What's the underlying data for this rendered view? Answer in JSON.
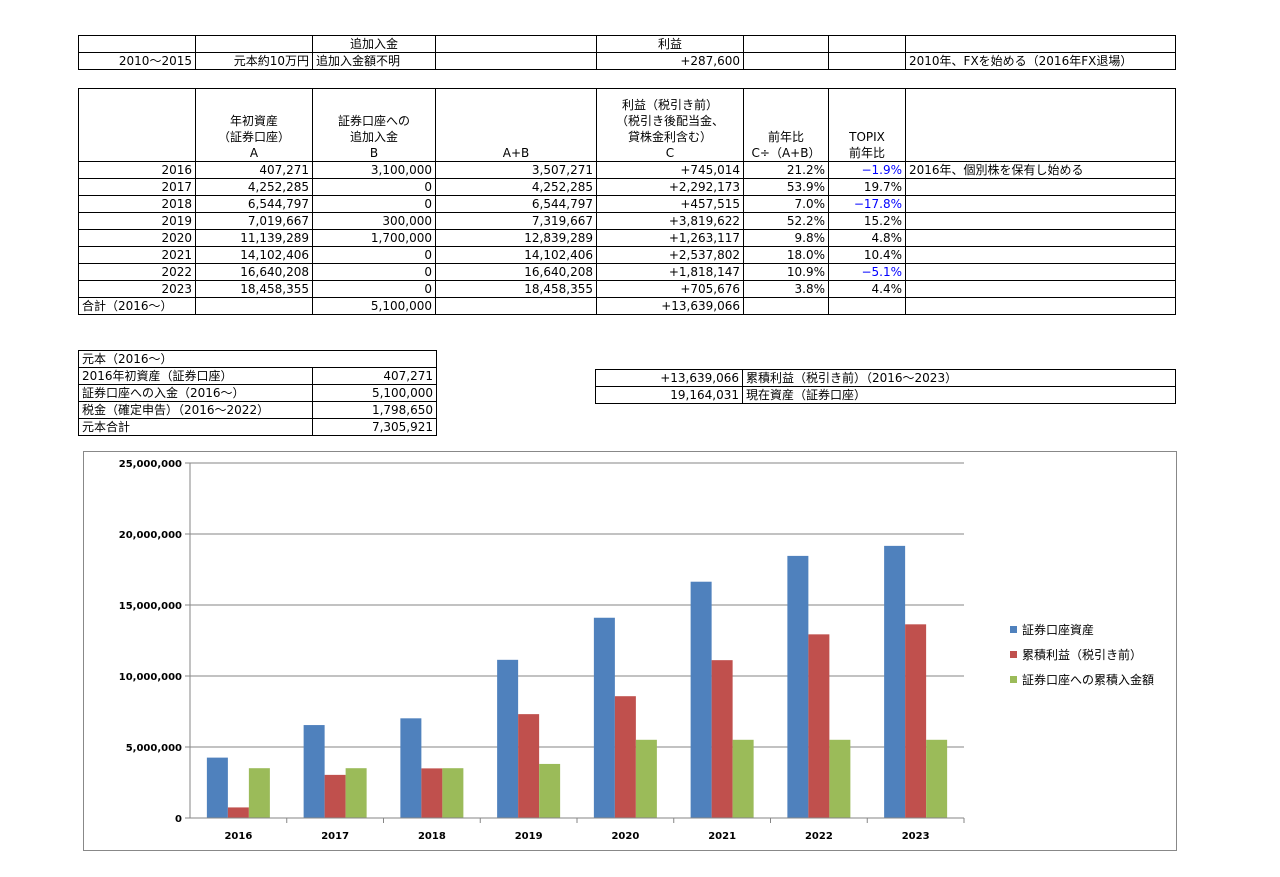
{
  "table_top": {
    "header": [
      "",
      "",
      "追加入金",
      "",
      "利益",
      "",
      "",
      ""
    ],
    "row": [
      "2010～2015",
      "元本約10万円",
      "追加入金額不明",
      "",
      "+287,600",
      "",
      "",
      "2010年、FXを始める（2016年FX退場）"
    ]
  },
  "table_main": {
    "headers": [
      {
        "lines": []
      },
      {
        "lines": [
          "年初資産",
          "（証券口座）",
          "A"
        ]
      },
      {
        "lines": [
          "証券口座への",
          "追加入金",
          "B"
        ]
      },
      {
        "lines": [
          "A+B"
        ]
      },
      {
        "lines": [
          "利益（税引き前）",
          "（税引き後配当金、",
          "貸株金利含む）",
          "C"
        ]
      },
      {
        "lines": [
          "前年比",
          "",
          "C÷（A+B）"
        ]
      },
      {
        "lines": [
          "TOPIX",
          "前年比",
          ""
        ]
      },
      {
        "lines": []
      }
    ],
    "rows": [
      {
        "year": "2016",
        "a": "407,271",
        "b": "3,100,000",
        "ab": "3,507,271",
        "c": "+745,014",
        "ratio": "21.2%",
        "topix": "−1.9%",
        "topix_neg": true,
        "note": "2016年、個別株を保有し始める"
      },
      {
        "year": "2017",
        "a": "4,252,285",
        "b": "0",
        "ab": "4,252,285",
        "c": "+2,292,173",
        "ratio": "53.9%",
        "topix": "19.7%",
        "topix_neg": false,
        "note": ""
      },
      {
        "year": "2018",
        "a": "6,544,797",
        "b": "0",
        "ab": "6,544,797",
        "c": "+457,515",
        "ratio": "7.0%",
        "topix": "−17.8%",
        "topix_neg": true,
        "note": ""
      },
      {
        "year": "2019",
        "a": "7,019,667",
        "b": "300,000",
        "ab": "7,319,667",
        "c": "+3,819,622",
        "ratio": "52.2%",
        "topix": "15.2%",
        "topix_neg": false,
        "note": ""
      },
      {
        "year": "2020",
        "a": "11,139,289",
        "b": "1,700,000",
        "ab": "12,839,289",
        "c": "+1,263,117",
        "ratio": "9.8%",
        "topix": "4.8%",
        "topix_neg": false,
        "note": ""
      },
      {
        "year": "2021",
        "a": "14,102,406",
        "b": "0",
        "ab": "14,102,406",
        "c": "+2,537,802",
        "ratio": "18.0%",
        "topix": "10.4%",
        "topix_neg": false,
        "note": ""
      },
      {
        "year": "2022",
        "a": "16,640,208",
        "b": "0",
        "ab": "16,640,208",
        "c": "+1,818,147",
        "ratio": "10.9%",
        "topix": "−5.1%",
        "topix_neg": true,
        "note": ""
      },
      {
        "year": "2023",
        "a": "18,458,355",
        "b": "0",
        "ab": "18,458,355",
        "c": "+705,676",
        "ratio": "3.8%",
        "topix": "4.4%",
        "topix_neg": false,
        "note": ""
      }
    ],
    "total": {
      "label": "合計（2016～）",
      "b": "5,100,000",
      "c": "+13,639,066"
    }
  },
  "principal": {
    "title": "元本（2016～）",
    "rows": [
      {
        "label": "2016年初資産（証券口座）",
        "value": "407,271"
      },
      {
        "label": "証券口座への入金（2016～）",
        "value": "5,100,000"
      },
      {
        "label": "税金（確定申告）（2016～2022）",
        "value": "1,798,650"
      },
      {
        "label": "元本合計",
        "value": "7,305,921"
      }
    ]
  },
  "summary": {
    "rows": [
      {
        "value": "+13,639,066",
        "label": "累積利益（税引き前）（2016～2023）"
      },
      {
        "value": "19,164,031",
        "label": "現在資産（証券口座）"
      }
    ]
  },
  "chart_data": {
    "type": "bar",
    "categories": [
      "2016",
      "2017",
      "2018",
      "2019",
      "2020",
      "2021",
      "2022",
      "2023"
    ],
    "series": [
      {
        "name": "証券口座資産",
        "color": "#4f81bd",
        "values": [
          4252285,
          6544797,
          7019667,
          11139289,
          14102406,
          16640208,
          18458355,
          19164031
        ]
      },
      {
        "name": "累積利益（税引き前）",
        "color": "#c0504d",
        "values": [
          745014,
          3037187,
          3494702,
          7314324,
          8577441,
          11115243,
          12933390,
          13639066
        ]
      },
      {
        "name": "証券口座への累積入金額",
        "color": "#9bbb59",
        "values": [
          3507271,
          3507271,
          3507271,
          3807271,
          5507271,
          5507271,
          5507271,
          5507271
        ]
      }
    ],
    "y_ticks": [
      "0",
      "5,000,000",
      "10,000,000",
      "15,000,000",
      "20,000,000",
      "25,000,000"
    ],
    "ylim": [
      0,
      25000000
    ],
    "grid": true,
    "legend_position": "right"
  }
}
